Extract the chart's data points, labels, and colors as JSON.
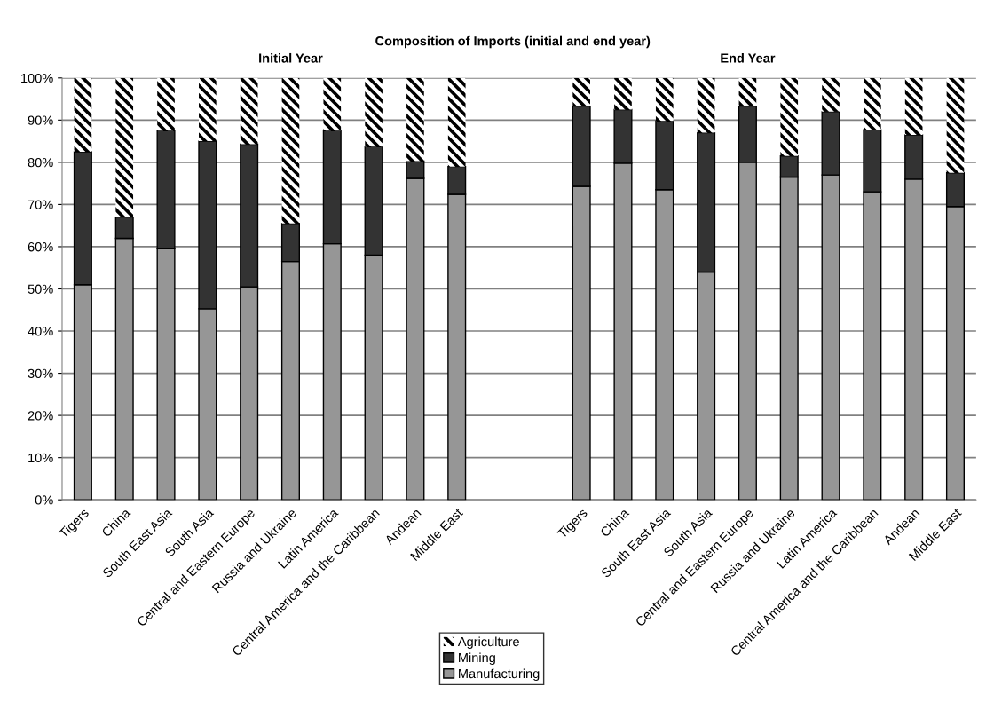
{
  "chart_data": {
    "type": "bar",
    "title": "Composition of Imports (initial and end year)",
    "annotations": [
      "Initial Year",
      "End Year"
    ],
    "categories": [
      "Tigers",
      "China",
      "South East Asia",
      "South Asia",
      "Central and Eastern Europe",
      "Russia and Ukraine",
      "Latin America",
      "Central America and the Caribbean",
      "Andean",
      "Middle East",
      null,
      null,
      "Tigers",
      "China",
      "South East Asia",
      "South Asia",
      "Central and Eastern Europe",
      "Russia and Ukraine",
      "Latin America",
      "Central America and the Caribbean",
      "Andean",
      "Middle East"
    ],
    "stacked": true,
    "series": [
      {
        "name": "Manufacturing",
        "color": "#969696",
        "values": [
          51,
          62,
          59.5,
          45.3,
          50.5,
          56.5,
          60.7,
          58,
          76.2,
          72.4,
          null,
          null,
          74.3,
          79.8,
          73.5,
          54,
          80,
          76.5,
          77,
          73,
          76,
          69.5
        ]
      },
      {
        "name": "Mining",
        "color": "#333333",
        "values": [
          31.5,
          5,
          28,
          39.7,
          33.8,
          9,
          26.8,
          25.7,
          4.1,
          6.6,
          null,
          null,
          19,
          12.7,
          16.3,
          33,
          13.3,
          5,
          15,
          14.7,
          10.5,
          8
        ]
      },
      {
        "name": "Agriculture",
        "color": "#000000",
        "values": [
          17.5,
          33,
          12.5,
          15,
          15.7,
          34.5,
          12.5,
          16.3,
          19.7,
          21,
          null,
          null,
          6.7,
          7.5,
          10.2,
          13,
          6.7,
          18.5,
          8,
          12.3,
          13.5,
          22.5
        ]
      }
    ],
    "ylim": [
      0,
      100
    ],
    "yticks": [
      {
        "value": 0,
        "label": "0%"
      },
      {
        "value": 10,
        "label": "10%"
      },
      {
        "value": 20,
        "label": "20%"
      },
      {
        "value": 30,
        "label": "30%"
      },
      {
        "value": 40,
        "label": "40%"
      },
      {
        "value": 50,
        "label": "50%"
      },
      {
        "value": 60,
        "label": "60%"
      },
      {
        "value": 70,
        "label": "70%"
      },
      {
        "value": 80,
        "label": "80%"
      },
      {
        "value": 90,
        "label": "90%"
      },
      {
        "value": 100,
        "label": "100%"
      }
    ],
    "grid": "y",
    "legend": "bottom"
  }
}
